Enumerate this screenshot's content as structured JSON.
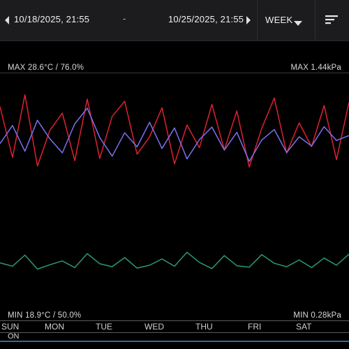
{
  "toolbar": {
    "start_date": "10/18/2025, 21:55",
    "separator": "-",
    "end_date": "10/25/2025, 21:55",
    "period": "WEEK",
    "prev_icon": "chevron-left-icon",
    "next_icon": "chevron-right-icon",
    "menu_icon": "sort-menu-icon"
  },
  "chart": {
    "max_left": "MAX 28.6°C / 76.0%",
    "max_right": "MAX 1.44kPa",
    "min_left": "MIN 18.9°C / 50.0%",
    "min_right": "MIN 0.28kPa"
  },
  "days": [
    "SUN",
    "MON",
    "TUE",
    "WED",
    "THU",
    "FRI",
    "SAT"
  ],
  "on_label": "ON",
  "chart_data": {
    "type": "line",
    "x": [
      0,
      0.25,
      0.5,
      0.75,
      1,
      1.25,
      1.5,
      1.75,
      2,
      2.25,
      2.5,
      2.75,
      3,
      3.25,
      3.5,
      3.75,
      4,
      4.25,
      4.5,
      4.75,
      5,
      5.25,
      5.5,
      5.75,
      6,
      6.25,
      6.5,
      6.75,
      7
    ],
    "series": [
      {
        "color": "#e02030",
        "values": [
          26.8,
          22.1,
          27.9,
          21.3,
          24.6,
          26.2,
          21.8,
          27.5,
          22.0,
          25.9,
          27.3,
          22.4,
          24.0,
          26.7,
          21.5,
          25.1,
          23.0,
          27.0,
          22.8,
          26.4,
          21.2,
          24.8,
          27.6,
          22.5,
          25.3,
          23.1,
          26.9,
          21.9,
          27.2
        ]
      },
      {
        "color": "#7a72ee",
        "values": [
          62.0,
          66.5,
          60.1,
          67.8,
          63.2,
          59.7,
          66.9,
          70.8,
          63.5,
          58.9,
          64.7,
          61.2,
          67.3,
          60.8,
          65.9,
          58.2,
          63.0,
          66.1,
          60.4,
          64.8,
          57.6,
          62.9,
          65.5,
          59.8,
          63.7,
          61.4,
          66.2,
          62.8,
          64.0
        ]
      },
      {
        "color": "#2a9a72",
        "values": [
          0.62,
          0.55,
          0.78,
          0.49,
          0.58,
          0.66,
          0.52,
          0.81,
          0.6,
          0.54,
          0.73,
          0.51,
          0.57,
          0.7,
          0.55,
          0.84,
          0.63,
          0.5,
          0.77,
          0.56,
          0.53,
          0.79,
          0.61,
          0.54,
          0.68,
          0.52,
          0.72,
          0.57,
          0.8
        ]
      }
    ]
  }
}
